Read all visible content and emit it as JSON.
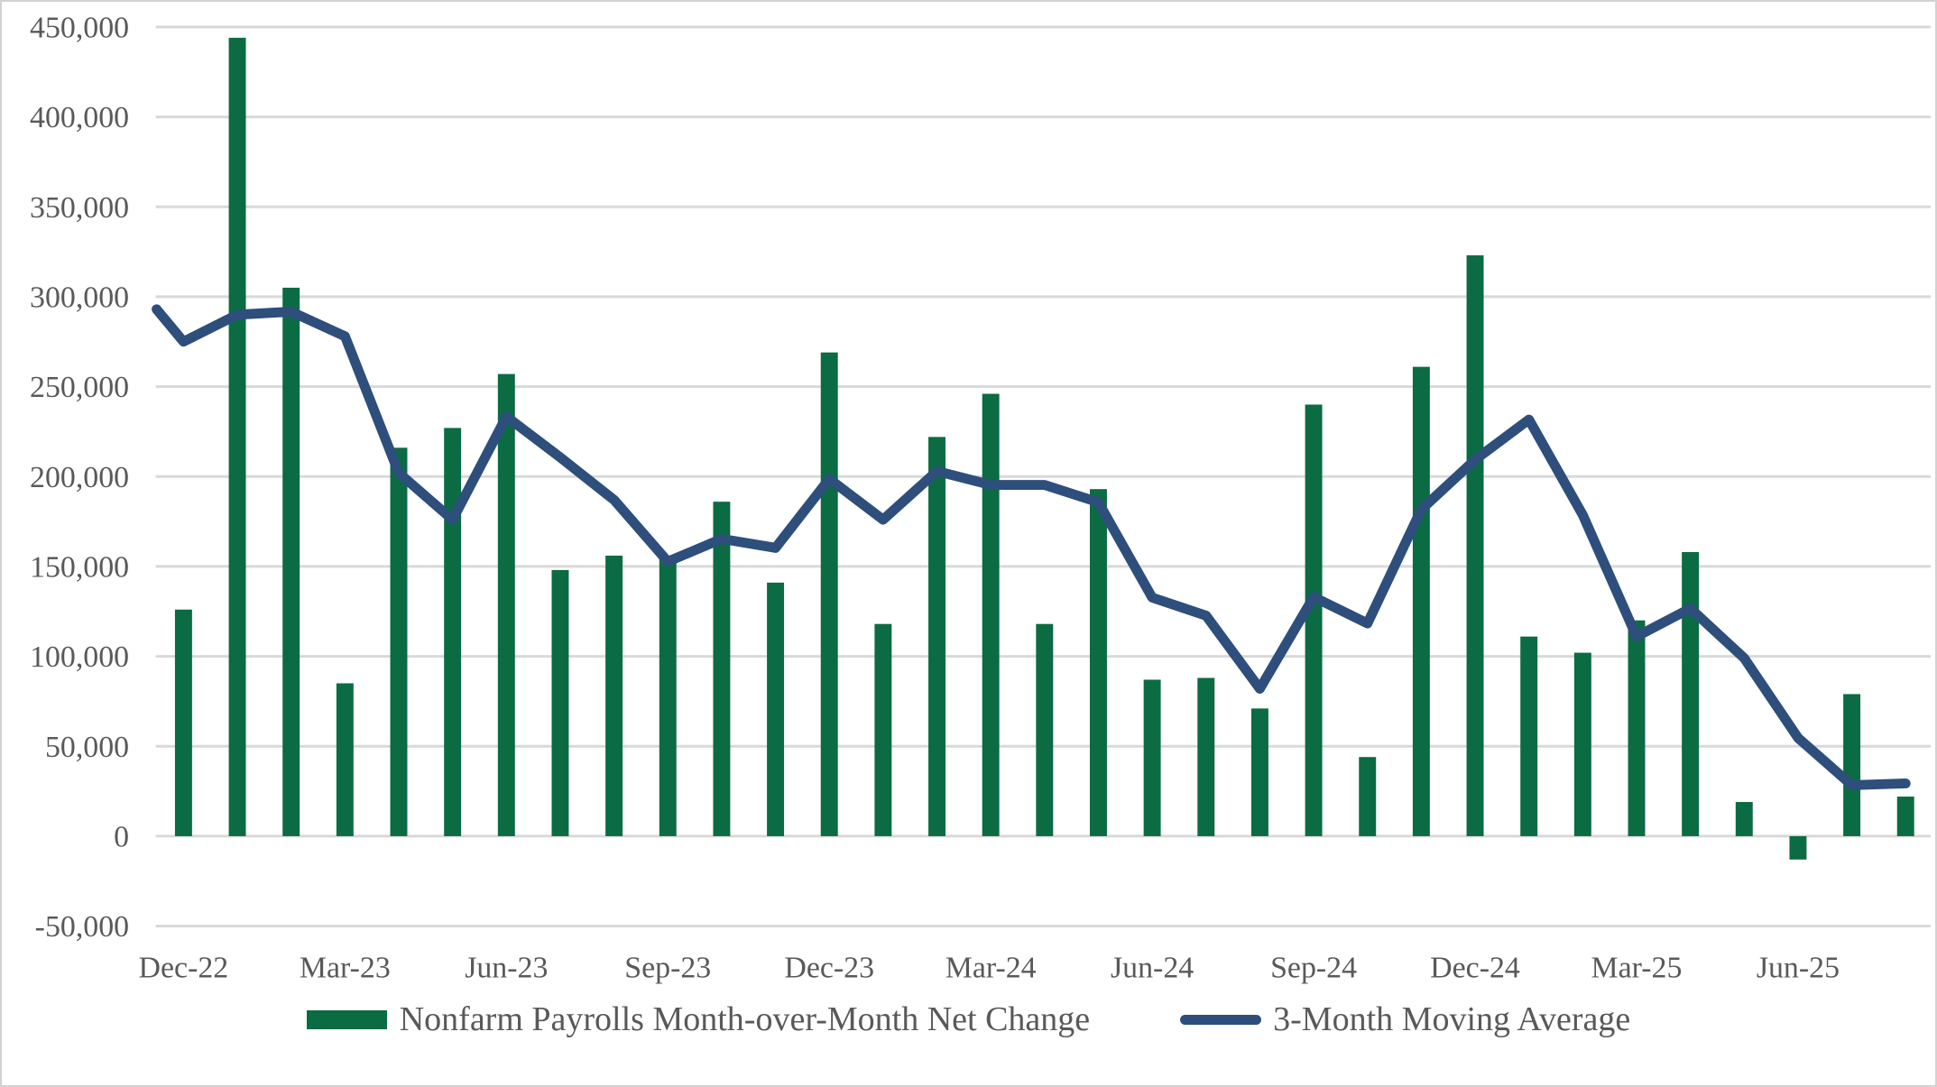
{
  "chart_data": {
    "type": "bar+line",
    "title": "",
    "xlabel": "",
    "ylabel": "",
    "categories": [
      "Dec-22",
      "Jan-23",
      "Feb-23",
      "Mar-23",
      "Apr-23",
      "May-23",
      "Jun-23",
      "Jul-23",
      "Aug-23",
      "Sep-23",
      "Oct-23",
      "Nov-23",
      "Dec-23",
      "Jan-24",
      "Feb-24",
      "Mar-24",
      "Apr-24",
      "May-24",
      "Jun-24",
      "Jul-24",
      "Aug-24",
      "Sep-24",
      "Oct-24",
      "Nov-24",
      "Dec-24",
      "Jan-25",
      "Feb-25",
      "Mar-25",
      "Apr-25",
      "May-25",
      "Jun-25",
      "Jul-25",
      "Aug-25"
    ],
    "series": [
      {
        "name": "Nonfarm Payrolls Month-over-Month Net Change",
        "type": "bar",
        "color": "#0b6b43",
        "values": [
          126000,
          444000,
          305000,
          85000,
          216000,
          227000,
          257000,
          148000,
          156000,
          154000,
          186000,
          141000,
          269000,
          118000,
          222000,
          246000,
          118000,
          193000,
          87000,
          88000,
          71000,
          240000,
          44000,
          261000,
          323000,
          111000,
          102000,
          120000,
          158000,
          19000,
          -13000,
          79000,
          22000
        ]
      },
      {
        "name": "3-Month Moving Average",
        "type": "line",
        "color": "#2e4e7c",
        "values": [
          275000,
          290000,
          291667,
          278000,
          202000,
          176000,
          233333,
          210667,
          187000,
          152667,
          165333,
          160333,
          198667,
          176000,
          203000,
          195333,
          195333,
          185667,
          132667,
          122667,
          82000,
          133000,
          118333,
          181667,
          209333,
          231667,
          178667,
          111000,
          126667,
          99000,
          54667,
          28333,
          29333
        ],
        "edge_start_value": 293000
      }
    ],
    "ylim": [
      -50000,
      450000
    ],
    "ytick_step": 50000,
    "ytick_labels": [
      "450,000",
      "400,000",
      "350,000",
      "300,000",
      "250,000",
      "200,000",
      "150,000",
      "100,000",
      "50,000",
      "0",
      "-50,000"
    ],
    "xtick_every": 3,
    "xtick_labels": [
      "Dec-22",
      "Mar-23",
      "Jun-23",
      "Sep-23",
      "Dec-23",
      "Mar-24",
      "Jun-24",
      "Sep-24",
      "Dec-24",
      "Mar-25",
      "Jun-25"
    ],
    "grid": true,
    "legend_position": "bottom",
    "colors": {
      "axis_text": "#595959",
      "gridline": "#d9d9d9",
      "background": "#ffffff",
      "border": "#d2d2d2"
    }
  }
}
